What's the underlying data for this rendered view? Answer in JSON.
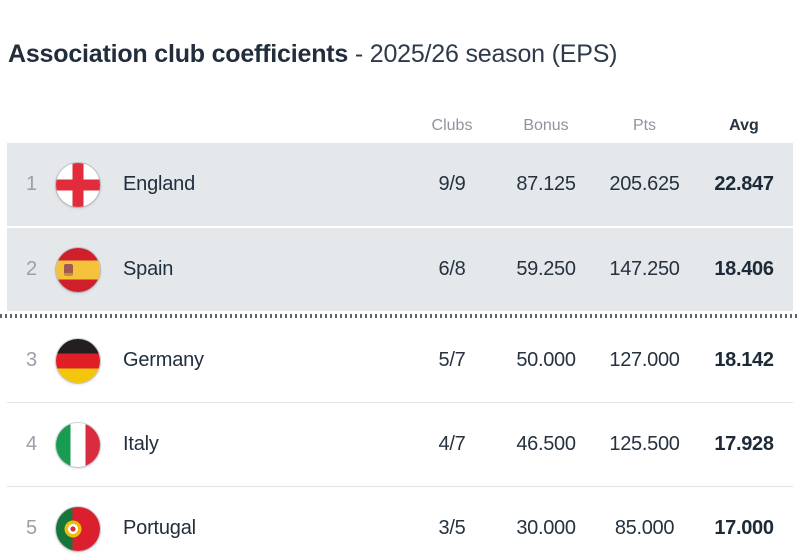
{
  "title": {
    "main": "Association club coefficients",
    "suffix": "- 2025/26 season (EPS)"
  },
  "table": {
    "columns": [
      {
        "label": "Clubs"
      },
      {
        "label": "Bonus"
      },
      {
        "label": "Pts"
      },
      {
        "label": "Avg"
      }
    ],
    "rows": [
      {
        "rank": "1",
        "country": "England",
        "flag": "england",
        "clubs": "9/9",
        "bonus": "87.125",
        "pts": "205.625",
        "avg": "22.847",
        "highlight": true
      },
      {
        "rank": "2",
        "country": "Spain",
        "flag": "spain",
        "clubs": "6/8",
        "bonus": "59.250",
        "pts": "147.250",
        "avg": "18.406",
        "highlight": true
      },
      {
        "rank": "3",
        "country": "Germany",
        "flag": "germany",
        "clubs": "5/7",
        "bonus": "50.000",
        "pts": "127.000",
        "avg": "18.142",
        "highlight": false
      },
      {
        "rank": "4",
        "country": "Italy",
        "flag": "italy",
        "clubs": "4/7",
        "bonus": "46.500",
        "pts": "125.500",
        "avg": "17.928",
        "highlight": false
      },
      {
        "rank": "5",
        "country": "Portugal",
        "flag": "portugal",
        "clubs": "3/5",
        "bonus": "30.000",
        "pts": "85.000",
        "avg": "17.000",
        "highlight": false
      }
    ],
    "cutoff_after_rank": 2
  },
  "colors": {
    "highlight_row_bg": "#e5e8eb",
    "dark_text": "#222e3c",
    "muted_text": "#8f959d",
    "cutoff_dots": "#5d646b",
    "divider": "#e2e5e8"
  }
}
